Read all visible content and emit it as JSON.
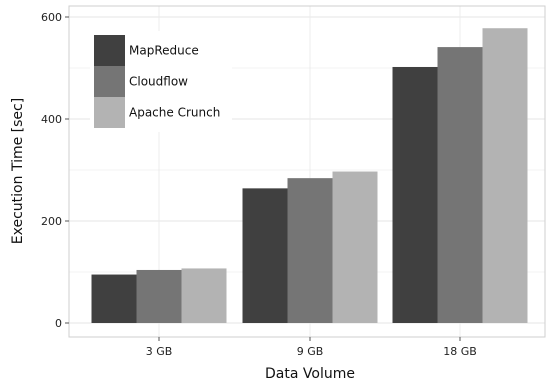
{
  "chart_data": {
    "type": "bar",
    "title": "",
    "xlabel": "Data Volume",
    "ylabel": "Execution Time [sec]",
    "categories": [
      "3 GB",
      "9 GB",
      "18 GB"
    ],
    "yticks": [
      "0",
      "200",
      "400",
      "600"
    ],
    "ylim": [
      0,
      620
    ],
    "grid": true,
    "legend_position": "top-left",
    "series": [
      {
        "name": "MapReduce",
        "color": "#404040",
        "values": [
          95,
          264,
          502
        ]
      },
      {
        "name": "Cloudflow",
        "color": "#757575",
        "values": [
          104,
          284,
          541
        ]
      },
      {
        "name": "Apache Crunch",
        "color": "#b3b3b3",
        "values": [
          107,
          297,
          578
        ]
      }
    ]
  }
}
